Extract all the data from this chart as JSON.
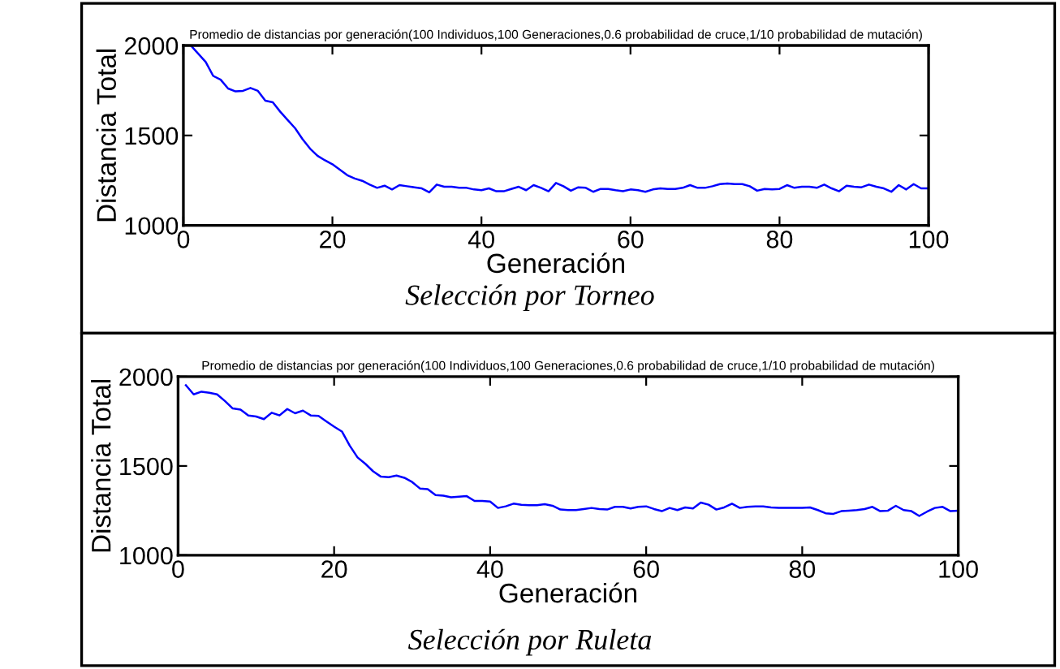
{
  "chart_data": [
    {
      "type": "line",
      "title": "Promedio de distancias por generación(100 Individuos,100 Generaciones,0.6 probabilidad de cruce,1/10 probabilidad de mutación)",
      "xlabel": "Generación",
      "ylabel": "Distancia Total",
      "annotations": [
        "Selección por Torneo"
      ],
      "x": [
        1,
        3,
        4,
        5,
        6,
        7,
        8,
        9,
        10,
        11,
        12,
        13,
        14,
        15,
        16,
        17,
        18,
        19,
        20,
        21,
        22,
        23,
        24,
        25,
        26,
        27,
        28,
        29,
        30,
        31,
        32,
        33,
        34,
        35,
        36,
        37,
        38,
        39,
        40,
        41,
        42,
        43,
        44,
        45,
        46,
        47,
        48,
        49,
        50,
        51,
        52,
        53,
        54,
        55,
        56,
        57,
        58,
        59,
        60,
        61,
        62,
        63,
        64,
        65,
        66,
        67,
        68,
        69,
        70,
        71,
        72,
        73,
        74,
        75,
        76,
        77,
        78,
        79,
        80,
        81,
        82,
        83,
        84,
        85,
        86,
        87,
        88,
        89,
        90,
        91,
        92,
        93,
        94,
        95,
        96,
        97,
        98,
        99,
        100
      ],
      "series": [
        {
          "color": "#0000ff",
          "values": [
            2000,
            1908,
            1831,
            1810,
            1761,
            1745,
            1748,
            1764,
            1748,
            1693,
            1684,
            1632,
            1586,
            1540,
            1479,
            1427,
            1387,
            1362,
            1340,
            1310,
            1279,
            1261,
            1248,
            1227,
            1209,
            1221,
            1200,
            1224,
            1218,
            1212,
            1206,
            1184,
            1227,
            1215,
            1215,
            1209,
            1209,
            1200,
            1196,
            1206,
            1190,
            1190,
            1203,
            1215,
            1196,
            1224,
            1209,
            1190,
            1236,
            1218,
            1193,
            1212,
            1209,
            1187,
            1203,
            1203,
            1196,
            1190,
            1200,
            1196,
            1187,
            1200,
            1206,
            1203,
            1203,
            1209,
            1224,
            1209,
            1209,
            1218,
            1230,
            1233,
            1230,
            1230,
            1218,
            1193,
            1203,
            1200,
            1203,
            1224,
            1209,
            1215,
            1215,
            1209,
            1227,
            1206,
            1190,
            1221,
            1215,
            1212,
            1227,
            1215,
            1206,
            1187,
            1224,
            1200,
            1230,
            1206,
            1206
          ]
        }
      ],
      "xlim": [
        0,
        100
      ],
      "ylim": [
        1000,
        2000
      ],
      "xticks": [
        0,
        20,
        40,
        60,
        80,
        100
      ],
      "yticks": [
        1000,
        1500,
        2000
      ],
      "grid": false
    },
    {
      "type": "line",
      "title": "Promedio de distancias por generación(100 Individuos,100 Generaciones,0.6 probabilidad de cruce,1/10 probabilidad de mutación)",
      "xlabel": "Generación",
      "ylabel": "Distancia Total",
      "annotations": [
        "Selección por Ruleta"
      ],
      "x": [
        1,
        2,
        3,
        4,
        5,
        6,
        7,
        8,
        9,
        10,
        11,
        12,
        13,
        14,
        15,
        16,
        17,
        18,
        19,
        20,
        21,
        22,
        23,
        24,
        25,
        26,
        27,
        28,
        29,
        30,
        31,
        32,
        33,
        34,
        35,
        36,
        37,
        38,
        39,
        40,
        41,
        42,
        43,
        44,
        45,
        46,
        47,
        48,
        49,
        50,
        51,
        52,
        53,
        54,
        55,
        56,
        57,
        58,
        59,
        60,
        61,
        62,
        63,
        64,
        65,
        66,
        67,
        68,
        69,
        70,
        71,
        72,
        73,
        74,
        75,
        76,
        77,
        78,
        79,
        80,
        81,
        82,
        83,
        84,
        85,
        86,
        87,
        88,
        89,
        90,
        91,
        92,
        93,
        94,
        95,
        96,
        97,
        98,
        99,
        100
      ],
      "series": [
        {
          "color": "#0000ff",
          "values": [
            1952,
            1901,
            1916,
            1910,
            1901,
            1864,
            1822,
            1816,
            1783,
            1777,
            1762,
            1798,
            1783,
            1819,
            1795,
            1810,
            1783,
            1780,
            1750,
            1720,
            1693,
            1614,
            1548,
            1512,
            1470,
            1440,
            1437,
            1446,
            1434,
            1410,
            1374,
            1370,
            1337,
            1334,
            1325,
            1328,
            1331,
            1304,
            1304,
            1301,
            1265,
            1274,
            1289,
            1283,
            1280,
            1280,
            1286,
            1277,
            1256,
            1253,
            1253,
            1259,
            1265,
            1259,
            1256,
            1271,
            1271,
            1262,
            1271,
            1274,
            1259,
            1247,
            1265,
            1253,
            1268,
            1262,
            1295,
            1283,
            1256,
            1268,
            1289,
            1265,
            1271,
            1274,
            1274,
            1268,
            1265,
            1265,
            1265,
            1265,
            1268,
            1253,
            1235,
            1232,
            1247,
            1250,
            1253,
            1259,
            1271,
            1247,
            1250,
            1277,
            1253,
            1247,
            1220,
            1244,
            1265,
            1271,
            1247,
            1250
          ]
        }
      ],
      "xlim": [
        0,
        100
      ],
      "ylim": [
        1000,
        2000
      ],
      "xticks": [
        0,
        20,
        40,
        60,
        80,
        100
      ],
      "yticks": [
        1000,
        1500,
        2000
      ],
      "grid": false
    }
  ]
}
